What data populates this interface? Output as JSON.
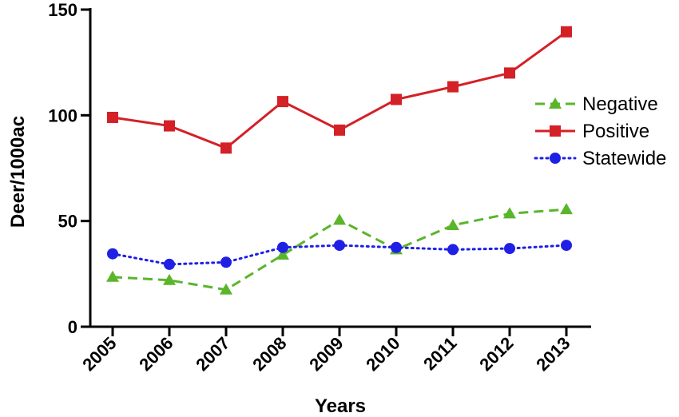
{
  "chart_data": {
    "type": "line",
    "title": "",
    "xlabel": "Years",
    "ylabel": "Deer/1000ac",
    "x": [
      "2005",
      "2006",
      "2007",
      "2008",
      "2009",
      "2010",
      "2011",
      "2012",
      "2013"
    ],
    "yticks": [
      0,
      50,
      100,
      150
    ],
    "ylim": [
      0,
      150
    ],
    "grid": false,
    "legend_position": "right",
    "series": [
      {
        "name": "Negative",
        "color": "#5ab52b",
        "line_style": "dashed",
        "marker": "triangle",
        "values": [
          23.5,
          22,
          17.5,
          34,
          50.5,
          36.5,
          48,
          53.5,
          55.5
        ]
      },
      {
        "name": "Positive",
        "color": "#d42027",
        "line_style": "solid",
        "marker": "square",
        "values": [
          99,
          95,
          84.5,
          106.5,
          93,
          107.5,
          113.5,
          120,
          139.5
        ]
      },
      {
        "name": "Statewide",
        "color": "#1f1fe6",
        "line_style": "dotted",
        "marker": "circle",
        "values": [
          34.5,
          29.5,
          30.5,
          37.5,
          38.5,
          37.5,
          36.5,
          37,
          38.5
        ]
      }
    ]
  }
}
